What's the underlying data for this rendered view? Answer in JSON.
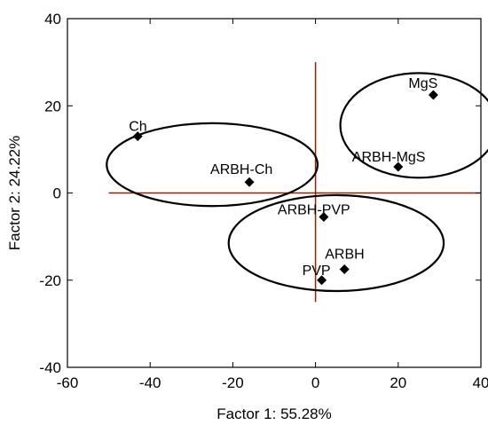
{
  "chart_data": {
    "type": "scatter",
    "xlabel": "Factor 1: 55.28%",
    "ylabel": "Factor 2: 24.22%",
    "xlim": [
      -60,
      40
    ],
    "ylim": [
      -40,
      40
    ],
    "xticks": [
      -60,
      -40,
      -20,
      0,
      20,
      40
    ],
    "yticks": [
      -40,
      -20,
      0,
      20,
      40
    ],
    "grid": false,
    "points": [
      {
        "label": "Ch",
        "x": -43,
        "y": 13
      },
      {
        "label": "ARBH-Ch",
        "x": -16,
        "y": 2.5
      },
      {
        "label": "MgS",
        "x": 28.5,
        "y": 22.5
      },
      {
        "label": "ARBH-MgS",
        "x": 20,
        "y": 6
      },
      {
        "label": "ARBH-PVP",
        "x": 2,
        "y": -5.5
      },
      {
        "label": "ARBH",
        "x": 7,
        "y": -17.5
      },
      {
        "label": "PVP",
        "x": 1.5,
        "y": -20
      }
    ],
    "reference_lines": {
      "horizontal": {
        "y": 0,
        "x_from": -50,
        "x_to": 40,
        "color": "#8b2500"
      },
      "vertical": {
        "x": 0,
        "y_from": -25,
        "y_to": 30,
        "color": "#8b2500"
      }
    },
    "ellipses": [
      {
        "cx": -25,
        "cy": 6.5,
        "rx": 25.5,
        "ry": 9.5
      },
      {
        "cx": 25,
        "cy": 15.5,
        "rx": 19,
        "ry": 12
      },
      {
        "cx": 5,
        "cy": -11.5,
        "rx": 26,
        "ry": 11
      }
    ]
  }
}
